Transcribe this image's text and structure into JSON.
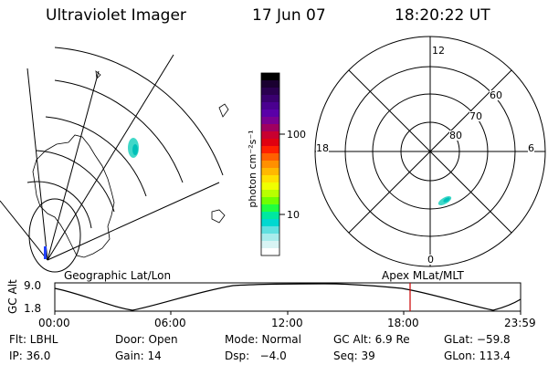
{
  "header": {
    "title": "Ultraviolet Imager",
    "date": "17 Jun 07",
    "time": "18:20:22 UT"
  },
  "colorbar": {
    "label": "photon cm⁻²s⁻¹",
    "ticks": [
      "100",
      "10"
    ],
    "colors": [
      "#000000",
      "#1a0030",
      "#2a0050",
      "#3a0070",
      "#4a0090",
      "#5a00a8",
      "#7a0090",
      "#a00060",
      "#c80030",
      "#e00010",
      "#ff2000",
      "#ff6000",
      "#ff9000",
      "#ffb800",
      "#ffe000",
      "#f0ff00",
      "#b8ff00",
      "#70ff00",
      "#20ff40",
      "#00e8a0",
      "#00d8d0",
      "#60e0e0",
      "#a8ecec",
      "#d8f4f4",
      "#ffffff"
    ]
  },
  "polar": {
    "hour_labels": {
      "top": "12",
      "left": "18",
      "right": "6",
      "bottom": "0"
    },
    "lat_labels": [
      "60",
      "70",
      "80"
    ]
  },
  "timeline": {
    "left_label": "Geographic Lat/Lon",
    "right_label": "Apex MLat/MLT",
    "axis_label": "GC Alt",
    "y_ticks": [
      "9.0",
      "1.8"
    ],
    "x_ticks": [
      "00:00",
      "06:00",
      "12:00",
      "18:00",
      "23:59"
    ],
    "marker_time": "18:20",
    "marker_color": "#cc0000"
  },
  "status": {
    "row1": [
      "Flt: LBHL",
      "Door: Open",
      "Mode: Normal",
      "GC Alt: 6.9 Re",
      "GLat: −59.8"
    ],
    "row2": [
      "IP: 36.0",
      "Gain: 14",
      "Dsp:   −4.0",
      "Seq: 39",
      "GLon: 113.4"
    ]
  }
}
